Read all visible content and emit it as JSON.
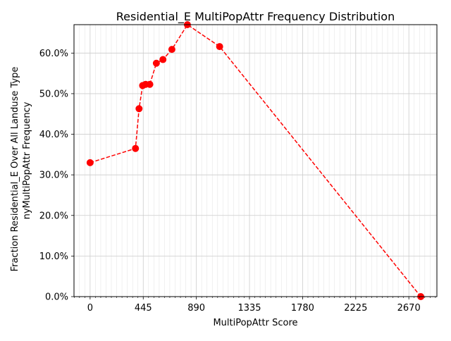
{
  "chart_data": {
    "type": "line",
    "title": "Residential_E MultiPopAttr Frequency Distribution",
    "xlabel": "MultiPopAttr Score",
    "ylabel_line1": "Fraction Residential_E Over All Landuse Type",
    "ylabel_line2": "nyMultiPopAttr Frequency",
    "xlim": [
      -135,
      2905
    ],
    "ylim": [
      0,
      67
    ],
    "xticks": [
      0,
      445,
      890,
      1335,
      1780,
      2225,
      2670
    ],
    "xtick_labels": [
      "0",
      "445",
      "890",
      "1335",
      "1780",
      "2225",
      "2670"
    ],
    "yticks": [
      0,
      10,
      20,
      30,
      40,
      50,
      60
    ],
    "ytick_labels": [
      "0.0%",
      "10.0%",
      "20.0%",
      "30.0%",
      "40.0%",
      "50.0%",
      "60.0%"
    ],
    "grid": true,
    "series": [
      {
        "color": "#ff0000",
        "line_style": "dashed",
        "marker": "circle",
        "x": [
          0,
          380,
          410,
          440,
          465,
          500,
          555,
          610,
          685,
          815,
          1085,
          2770
        ],
        "y": [
          33.0,
          36.5,
          46.3,
          52.0,
          52.3,
          52.3,
          57.5,
          58.4,
          60.9,
          67.0,
          61.6,
          0.0
        ]
      }
    ]
  }
}
